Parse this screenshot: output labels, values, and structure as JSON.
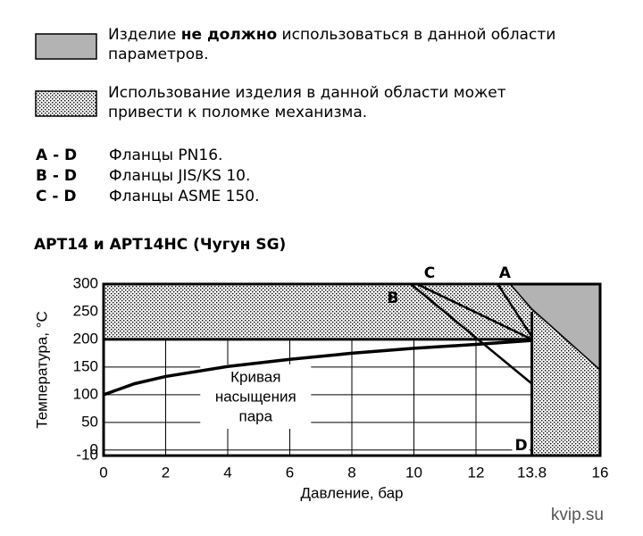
{
  "notes": [
    {
      "parts": [
        "Изделие ",
        "не должно",
        " использоваться в данной области"
      ],
      "line2": "параметров."
    },
    {
      "line1": "Использование изделия в данной области может",
      "line2": "привести к поломке механизма."
    }
  ],
  "flanges": [
    {
      "code": "A - D",
      "label": "Фланцы PN16."
    },
    {
      "code": "B - D",
      "label": "Фланцы JIS/KS 10."
    },
    {
      "code": "C - D",
      "label": "Фланцы ASME 150."
    }
  ],
  "watermark": "kvip.su",
  "chart_data": {
    "type": "line",
    "title": "APT14 и APT14HC (Чугун SG)",
    "xlabel": "Давление, бар",
    "ylabel": "Температура, °C",
    "xlim": [
      0,
      16
    ],
    "ylim": [
      -10,
      300
    ],
    "xticks": [
      0,
      2,
      4,
      6,
      8,
      10,
      12,
      13.8,
      16
    ],
    "yticks": [
      -10,
      0,
      50,
      100,
      150,
      200,
      250,
      300
    ],
    "grid": true,
    "annotation": [
      "Кривая",
      "насыщения",
      "пара"
    ],
    "series": [
      {
        "color": "#000000",
        "x": [
          0,
          1,
          2,
          4,
          6,
          8,
          10,
          12,
          13.8
        ],
        "values": [
          100,
          120,
          133,
          151,
          164,
          175,
          184,
          191,
          198
        ]
      }
    ],
    "limit_lines": [
      {
        "name": "A",
        "color": "#000000",
        "x": [
          12.7,
          13.8
        ],
        "values": [
          300,
          205
        ]
      },
      {
        "name": "B",
        "color": "#000000",
        "x": [
          9.9,
          13.8
        ],
        "values": [
          300,
          120
        ]
      },
      {
        "name": "C",
        "color": "#000000",
        "x": [
          10.1,
          13.8
        ],
        "values": [
          300,
          200
        ]
      }
    ],
    "end_point": {
      "label": "D",
      "x": 13.8,
      "y": -10
    },
    "regions": [
      {
        "fill": "dots",
        "x": [
          0,
          13.8,
          13.8,
          16,
          16,
          13.8,
          13.1,
          0
        ],
        "values": [
          200,
          200,
          -10,
          -10,
          145,
          255,
          300,
          300
        ]
      },
      {
        "fill": "#b3b3b3",
        "x": [
          13.1,
          16,
          16,
          13.8
        ],
        "values": [
          300,
          300,
          145,
          255
        ]
      }
    ]
  }
}
